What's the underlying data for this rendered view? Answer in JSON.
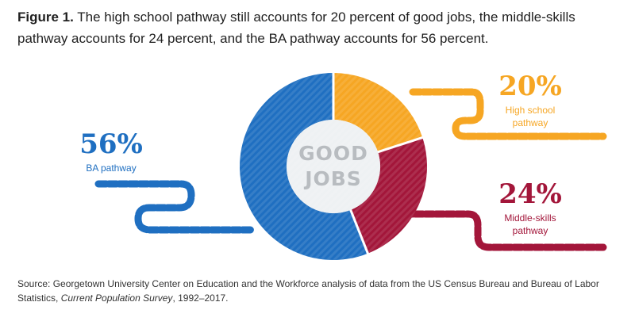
{
  "caption": {
    "label": "Figure 1.",
    "text": " The high school pathway still accounts for 20 percent of good jobs, the middle-skills pathway accounts for 24 percent, and the BA pathway accounts for 56 percent."
  },
  "center_label": {
    "line1": "GOOD",
    "line2": "JOBS"
  },
  "source": {
    "prefix": "Source: Georgetown University Center on Education and the Workforce analysis of data from the US Census Bureau and Bureau of Labor Statistics, ",
    "title": "Current Population Survey",
    "suffix": ", 1992–2017."
  },
  "colors": {
    "high_school": "#f6a623",
    "middle_skills": "#a3163a",
    "ba": "#1f6fc1",
    "center_fill": "#eef1f3",
    "center_text": "#b8bcc0"
  },
  "chart_data": {
    "type": "pie",
    "title": "",
    "series": [
      {
        "name": "High school pathway",
        "value": 20,
        "label": "20%",
        "name_line1": "High school",
        "name_line2": "pathway",
        "color": "#f6a623"
      },
      {
        "name": "Middle-skills pathway",
        "value": 24,
        "label": "24%",
        "name_line1": "Middle-skills",
        "name_line2": "pathway",
        "color": "#a3163a"
      },
      {
        "name": "BA pathway",
        "value": 56,
        "label": "56%",
        "name_line1": "BA pathway",
        "name_line2": "",
        "color": "#1f6fc1"
      }
    ]
  }
}
